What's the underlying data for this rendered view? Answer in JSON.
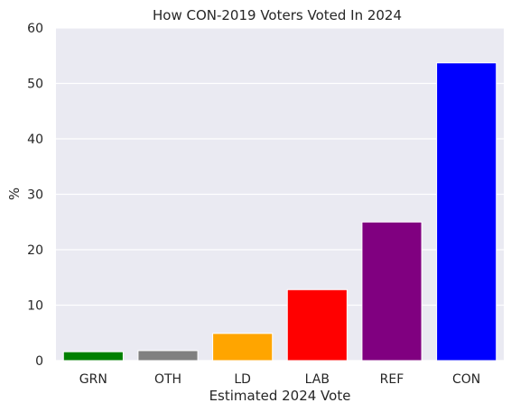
{
  "chart_data": {
    "type": "bar",
    "title": "How CON-2019 Voters Voted In 2024",
    "xlabel": "Estimated 2024 Vote",
    "ylabel": "%",
    "categories": [
      "GRN",
      "OTH",
      "LD",
      "LAB",
      "REF",
      "CON"
    ],
    "values": [
      1.6,
      1.8,
      4.9,
      12.8,
      25.0,
      53.7
    ],
    "colors": [
      "#008000",
      "#808080",
      "#FFA500",
      "#FF0000",
      "#800080",
      "#0000FF"
    ],
    "ylim": [
      0,
      60
    ],
    "yticks": [
      0,
      10,
      20,
      30,
      40,
      50,
      60
    ],
    "grid": true,
    "plot_background": "#EAEAF2",
    "grid_color": "#FFFFFF",
    "text_color": "#262626"
  }
}
